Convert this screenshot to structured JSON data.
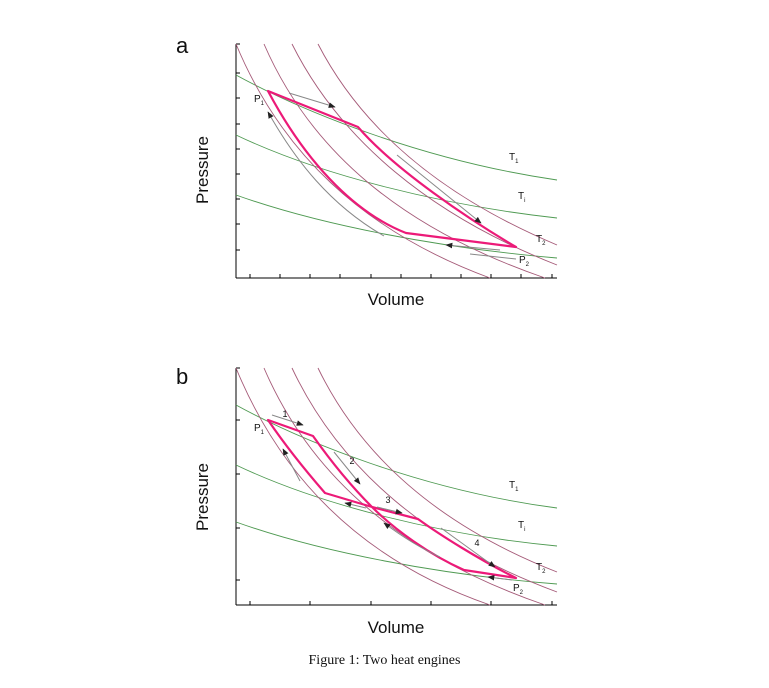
{
  "panels": [
    {
      "letter": "a",
      "xlabel": "Volume",
      "ylabel": "Pressure",
      "labels": {
        "p1": {
          "main": "P",
          "sub": "1"
        },
        "p2": {
          "main": "P",
          "sub": "2"
        },
        "t1": {
          "main": "T",
          "sub": "1"
        },
        "ti": {
          "main": "T",
          "sub": "i"
        },
        "t2": {
          "main": "T",
          "sub": "2"
        }
      },
      "steps": []
    },
    {
      "letter": "b",
      "xlabel": "Volume",
      "ylabel": "Pressure",
      "labels": {
        "p1": {
          "main": "P",
          "sub": "1"
        },
        "p2": {
          "main": "P",
          "sub": "2"
        },
        "t1": {
          "main": "T",
          "sub": "1"
        },
        "ti": {
          "main": "T",
          "sub": "i"
        },
        "t2": {
          "main": "T",
          "sub": "2"
        }
      },
      "steps": [
        "1",
        "2",
        "3",
        "4"
      ]
    }
  ],
  "caption": "Figure 1: Two heat engines",
  "colors": {
    "isotherm": "#4f9a52",
    "adiabat": "#a55a78",
    "cycle": "#ec1a78",
    "arrow": "#888888",
    "axis": "#000000"
  }
}
